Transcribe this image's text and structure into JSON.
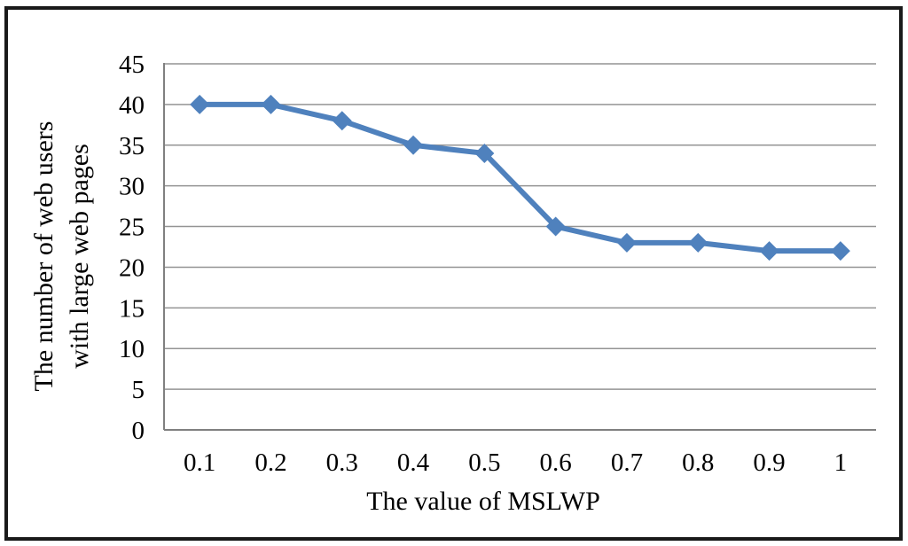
{
  "chart_data": {
    "type": "line",
    "xlabel": "The value of MSLWP",
    "ylabel": "The number of web users with large web pages",
    "ylabel_lines": [
      "The number of web users",
      "with large web pages"
    ],
    "x": [
      0.1,
      0.2,
      0.3,
      0.4,
      0.5,
      0.6,
      0.7,
      0.8,
      0.9,
      1
    ],
    "x_tick_labels": [
      "0.1",
      "0.2",
      "0.3",
      "0.4",
      "0.5",
      "0.6",
      "0.7",
      "0.8",
      "0.9",
      "1"
    ],
    "values": [
      40,
      40,
      38,
      35,
      34,
      25,
      23,
      23,
      22,
      22
    ],
    "yticks": [
      0,
      5,
      10,
      15,
      20,
      25,
      30,
      35,
      40,
      45
    ],
    "ylim": [
      0,
      45
    ],
    "grid": true,
    "legend": "none",
    "marker": "diamond",
    "colors": {
      "line": "#4F81BD",
      "gridline": "#949494",
      "axis": "#808080",
      "text": "#000000",
      "border": "#1a1a1a",
      "background": "#ffffff"
    }
  }
}
